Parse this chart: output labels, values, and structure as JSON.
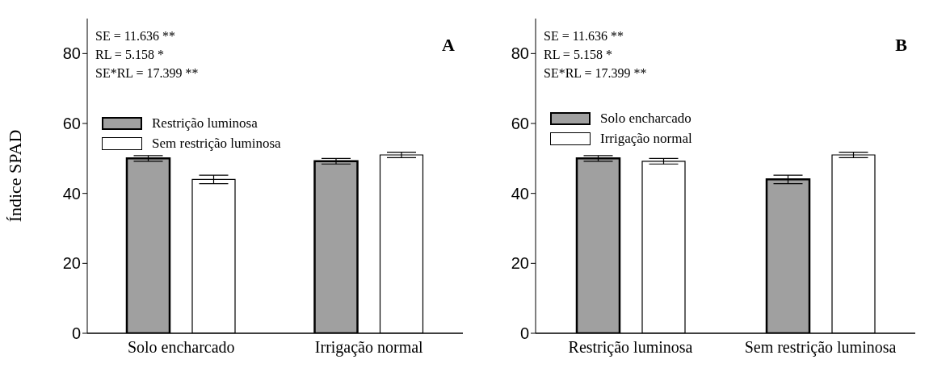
{
  "chart_data": [
    {
      "type": "bar",
      "title": "A",
      "ylabel": "Índice SPAD",
      "categories": [
        "Solo encharcado",
        "Irrigação normal"
      ],
      "ylim": [
        0,
        90
      ],
      "yticks": [
        0,
        20,
        40,
        60,
        80
      ],
      "grid": false,
      "legend": "top left",
      "annotations": [
        "SE = 11.636 **",
        "RL = 5.158 *",
        "SE*RL = 17.399 **"
      ],
      "series": [
        {
          "name": "Restrição luminosa",
          "color": "#a0a0a0",
          "values": [
            50,
            49.2
          ],
          "errors": [
            0.8,
            0.8
          ]
        },
        {
          "name": "Sem restrição luminosa",
          "color": "#ffffff",
          "values": [
            44,
            51
          ],
          "errors": [
            1.2,
            0.8
          ]
        }
      ]
    },
    {
      "type": "bar",
      "title": "B",
      "categories": [
        "Restrição luminosa",
        "Sem restrição luminosa"
      ],
      "ylim": [
        0,
        90
      ],
      "yticks": [
        0,
        20,
        40,
        60,
        80
      ],
      "grid": false,
      "legend": "top left",
      "annotations": [
        "SE = 11.636 **",
        "RL = 5.158 *",
        "SE*RL = 17.399 **"
      ],
      "series": [
        {
          "name": "Solo encharcado",
          "color": "#a0a0a0",
          "values": [
            50,
            44
          ],
          "errors": [
            0.8,
            1.2
          ]
        },
        {
          "name": "Irrigação normal",
          "color": "#ffffff",
          "values": [
            49.2,
            51
          ],
          "errors": [
            0.8,
            0.8
          ]
        }
      ]
    }
  ]
}
